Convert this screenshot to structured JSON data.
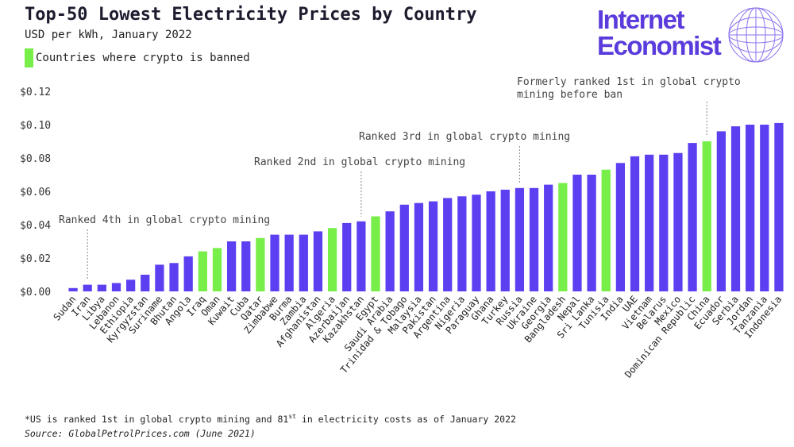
{
  "title": "Top-50 Lowest Electricity Prices by Country",
  "subtitle": "USD per kWh, January 2022",
  "legend": {
    "label": "Countries where crypto is banned"
  },
  "logo": {
    "line1": "Internet",
    "line2": "Economist"
  },
  "footnote": {
    "before": "*US is ranked 1st in global crypto mining and 81",
    "sup": "st",
    "after": " in electricity costs as of January 2022"
  },
  "source": "Source: GlobalPetrolPrices.com (June 2021)",
  "colors": {
    "normal": "#5b3ff0",
    "banned": "#78ee48",
    "text": "#333333"
  },
  "chart_data": {
    "type": "bar",
    "categories": [
      "Sudan",
      "Iran",
      "Libya",
      "Lebanon",
      "Ethiopia",
      "Kyrgyzstan",
      "Suriname",
      "Bhutan",
      "Angola",
      "Iraq",
      "Oman",
      "Kuwait",
      "Cuba",
      "Qatar",
      "Zimbabwe",
      "Burma",
      "Zambia",
      "Afghanistan",
      "Algeria",
      "Azerbaijan",
      "Kazakhstan",
      "Egypt",
      "Saudi Arabia",
      "Trinidad & Tobago",
      "Malaysia",
      "Pakistan",
      "Argentina",
      "Nigeria",
      "Paraguay",
      "Ghana",
      "Turkey",
      "Russia",
      "Ukraine",
      "Georgia",
      "Bangladesh",
      "Nepal",
      "Sri Lanka",
      "Tunisia",
      "India",
      "UAE",
      "Vietnam",
      "Belarus",
      "Mexico",
      "Dominican Republic",
      "China",
      "Ecuador",
      "Serbia",
      "Jordan",
      "Tanzania",
      "Indonesia"
    ],
    "values": [
      0.002,
      0.004,
      0.004,
      0.005,
      0.007,
      0.01,
      0.016,
      0.017,
      0.021,
      0.024,
      0.026,
      0.03,
      0.03,
      0.032,
      0.034,
      0.034,
      0.034,
      0.036,
      0.038,
      0.041,
      0.042,
      0.045,
      0.048,
      0.052,
      0.053,
      0.054,
      0.056,
      0.057,
      0.058,
      0.06,
      0.061,
      0.062,
      0.062,
      0.064,
      0.065,
      0.07,
      0.07,
      0.073,
      0.077,
      0.081,
      0.082,
      0.082,
      0.083,
      0.089,
      0.09,
      0.096,
      0.099,
      0.1,
      0.1,
      0.101
    ],
    "banned": [
      "Iraq",
      "Oman",
      "Qatar",
      "Algeria",
      "Egypt",
      "Bangladesh",
      "Tunisia",
      "China"
    ],
    "ylim": [
      0,
      0.12
    ],
    "yticks": [
      0,
      0.02,
      0.04,
      0.06,
      0.08,
      0.1,
      0.12
    ],
    "yticklabels": [
      "$0.00",
      "$0.02",
      "$0.04",
      "$0.06",
      "$0.08",
      "$0.10",
      "$0.12"
    ],
    "grid": false,
    "annotations": [
      {
        "text": "Ranked 4th in global crypto mining",
        "target": "Iran"
      },
      {
        "text": "Ranked 2nd in global crypto mining",
        "target": "Kazakhstan"
      },
      {
        "text": "Ranked 3rd in global crypto mining",
        "target": "Russia"
      },
      {
        "text": "Formerly ranked 1st in global crypto mining before ban",
        "lines": [
          "Formerly ranked 1st in global crypto",
          "mining before ban"
        ],
        "target": "China"
      }
    ]
  }
}
